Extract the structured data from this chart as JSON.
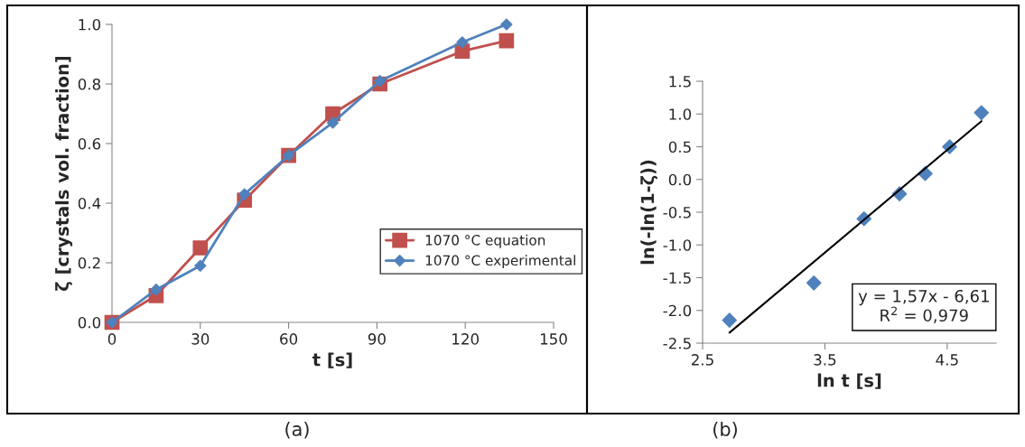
{
  "chart_data": [
    {
      "type": "line",
      "xlabel": "t [s]",
      "ylabel": "ζ [crystals vol. fraction]",
      "xlim": [
        0,
        150
      ],
      "xticks": [
        0,
        30,
        60,
        90,
        120,
        150
      ],
      "ylim": [
        0,
        1.0
      ],
      "yticks": [
        {
          "value": 0,
          "label": "0.0"
        },
        {
          "value": 0.2,
          "label": "0.2"
        },
        {
          "value": 0.4,
          "label": "0.4"
        },
        {
          "value": 0.6,
          "label": "0.6"
        },
        {
          "value": 0.8,
          "label": "0.8"
        },
        {
          "value": 1.0,
          "label": "1.0"
        }
      ],
      "grid": false,
      "legend": "bottom right",
      "series": [
        {
          "name": "1070 °C equation",
          "color": "#c0504d",
          "marker": "square",
          "x": [
            0,
            15,
            30,
            45,
            60,
            75,
            91,
            119,
            134
          ],
          "values": [
            0,
            0.09,
            0.25,
            0.41,
            0.56,
            0.7,
            0.8,
            0.91,
            0.945
          ]
        },
        {
          "name": "1070 °C experimental",
          "color": "#4f81bd",
          "marker": "diamond",
          "x": [
            0,
            15,
            30,
            45,
            60,
            75,
            91,
            119,
            134
          ],
          "values": [
            0,
            0.11,
            0.19,
            0.43,
            0.56,
            0.67,
            0.81,
            0.94,
            1.0
          ]
        }
      ],
      "annotations": [
        "(a)"
      ]
    },
    {
      "type": "scatter",
      "xlabel": "ln t [s]",
      "ylabel": "ln(-ln(1-ζ))",
      "xlim": [
        2.5,
        4.9
      ],
      "xticks": [
        2.5,
        3.5,
        4.5
      ],
      "ylim": [
        -2.5,
        1.5
      ],
      "yticks": [
        {
          "value": -2.5,
          "label": "-2.5"
        },
        {
          "value": -2.0,
          "label": "-2.0"
        },
        {
          "value": -1.5,
          "label": "-1.5"
        },
        {
          "value": -1.0,
          "label": "-1.0"
        },
        {
          "value": -0.5,
          "label": "-0.5"
        },
        {
          "value": 0,
          "label": "0.0"
        },
        {
          "value": 0.5,
          "label": "0.5"
        },
        {
          "value": 1.0,
          "label": "1.0"
        },
        {
          "value": 1.5,
          "label": "1.5"
        }
      ],
      "grid": false,
      "legend": false,
      "series": [
        {
          "color": "#4f81bd",
          "marker": "diamond",
          "x": [
            2.72,
            3.41,
            3.82,
            4.11,
            4.32,
            4.52,
            4.78
          ],
          "values": [
            -2.15,
            -1.58,
            -0.6,
            -0.22,
            0.09,
            0.5,
            1.02
          ]
        },
        {
          "type": "line",
          "color": "#000000",
          "marker": "none",
          "x": [
            2.72,
            4.78
          ],
          "values": [
            -2.34,
            0.89
          ]
        }
      ],
      "annotations": [
        "y = 1,57x - 6,61\nR$^{2}$ = 0,979",
        "(b)"
      ]
    }
  ]
}
